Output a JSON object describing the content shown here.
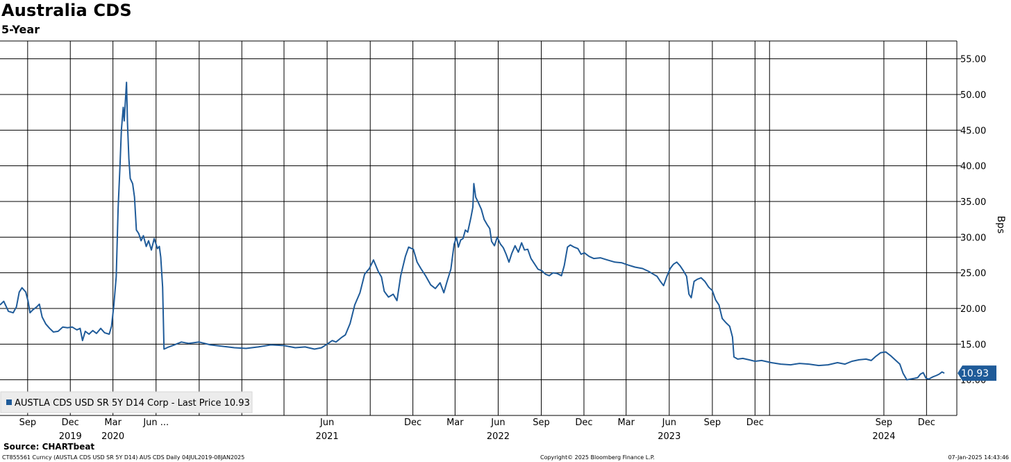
{
  "chart_data": {
    "type": "line",
    "title": "Australia CDS",
    "subtitle": "5-Year",
    "ylabel": "Bps",
    "ylim": [
      5,
      57.5
    ],
    "y_ticks": [
      "55.00",
      "50.00",
      "45.00",
      "40.00",
      "35.00",
      "30.00",
      "25.00",
      "20.00",
      "15.00",
      "10.00"
    ],
    "x_range": [
      "2019-07-04",
      "2025-01-08"
    ],
    "x_tick_labels": [
      {
        "date": "2019-09-01",
        "label": "Sep"
      },
      {
        "date": "2019-12-01",
        "label": "Dec"
      },
      {
        "date": "2020-03-01",
        "label": "Mar"
      },
      {
        "date": "2020-06-01",
        "label": "Jun ..."
      },
      {
        "date": "2021-06-01",
        "label": "Jun"
      },
      {
        "date": "2021-12-01",
        "label": "Dec"
      },
      {
        "date": "2022-03-01",
        "label": "Mar"
      },
      {
        "date": "2022-06-01",
        "label": "Jun"
      },
      {
        "date": "2022-09-01",
        "label": "Sep"
      },
      {
        "date": "2022-12-01",
        "label": "Dec"
      },
      {
        "date": "2023-03-01",
        "label": "Mar"
      },
      {
        "date": "2023-06-01",
        "label": "Jun"
      },
      {
        "date": "2023-09-01",
        "label": "Sep"
      },
      {
        "date": "2023-12-01",
        "label": "Dec"
      },
      {
        "date": "2024-09-01",
        "label": "Sep"
      },
      {
        "date": "2024-12-01",
        "label": "Dec"
      }
    ],
    "year_labels": [
      {
        "date": "2019-12-01",
        "label": "2019"
      },
      {
        "date": "2020-03-01",
        "label": "2020"
      },
      {
        "date": "2021-06-01",
        "label": "2021"
      },
      {
        "date": "2022-06-01",
        "label": "2022"
      },
      {
        "date": "2023-06-01",
        "label": "2023"
      },
      {
        "date": "2024-09-01",
        "label": "2024"
      }
    ],
    "vertical_gridlines": [
      "2019-09-01",
      "2019-12-01",
      "2020-03-01",
      "2020-06-01",
      "2020-09-01",
      "2020-12-01",
      "2021-03-01",
      "2021-06-01",
      "2021-09-01",
      "2021-12-01",
      "2022-03-01",
      "2022-06-01",
      "2022-09-01",
      "2022-12-01",
      "2023-03-01",
      "2023-06-01",
      "2023-09-01",
      "2023-12-01",
      "2024-01-01",
      "2024-09-01",
      "2024-12-01"
    ],
    "grid": true,
    "legend": {
      "placement": "bottom-left",
      "text": "AUSTLA CDS USD SR 5Y D14 Corp - Last Price 10.93"
    },
    "last_price_label": "10.93",
    "colors": {
      "series": "#1f5b99",
      "last_price_box": "#1f5b99",
      "legend_bg": "#ececec",
      "grid": "#000000"
    },
    "series": [
      {
        "name": "AUSTLA CDS USD SR 5Y D14 Corp",
        "points": [
          [
            "2019-07-04",
            20.5
          ],
          [
            "2019-07-12",
            21.0
          ],
          [
            "2019-07-22",
            19.6
          ],
          [
            "2019-08-01",
            19.4
          ],
          [
            "2019-08-08",
            20.2
          ],
          [
            "2019-08-14",
            22.3
          ],
          [
            "2019-08-20",
            22.9
          ],
          [
            "2019-08-28",
            22.3
          ],
          [
            "2019-09-02",
            21.0
          ],
          [
            "2019-09-06",
            19.4
          ],
          [
            "2019-09-12",
            19.8
          ],
          [
            "2019-09-20",
            20.2
          ],
          [
            "2019-09-26",
            20.6
          ],
          [
            "2019-10-02",
            18.8
          ],
          [
            "2019-10-10",
            17.8
          ],
          [
            "2019-10-18",
            17.2
          ],
          [
            "2019-10-26",
            16.7
          ],
          [
            "2019-11-05",
            16.8
          ],
          [
            "2019-11-15",
            17.4
          ],
          [
            "2019-11-25",
            17.3
          ],
          [
            "2019-12-05",
            17.4
          ],
          [
            "2019-12-15",
            17.0
          ],
          [
            "2019-12-22",
            17.2
          ],
          [
            "2019-12-27",
            15.5
          ],
          [
            "2020-01-02",
            16.8
          ],
          [
            "2020-01-10",
            16.4
          ],
          [
            "2020-01-18",
            16.9
          ],
          [
            "2020-01-26",
            16.5
          ],
          [
            "2020-02-04",
            17.2
          ],
          [
            "2020-02-12",
            16.6
          ],
          [
            "2020-02-22",
            16.4
          ],
          [
            "2020-02-27",
            17.5
          ],
          [
            "2020-03-03",
            20.5
          ],
          [
            "2020-03-08",
            24.5
          ],
          [
            "2020-03-12",
            34.0
          ],
          [
            "2020-03-16",
            40.0
          ],
          [
            "2020-03-19",
            45.0
          ],
          [
            "2020-03-23",
            48.2
          ],
          [
            "2020-03-25",
            46.3
          ],
          [
            "2020-03-27",
            48.5
          ],
          [
            "2020-03-30",
            51.7
          ],
          [
            "2020-04-01",
            46.0
          ],
          [
            "2020-04-04",
            41.0
          ],
          [
            "2020-04-07",
            38.2
          ],
          [
            "2020-04-12",
            37.5
          ],
          [
            "2020-04-16",
            35.6
          ],
          [
            "2020-04-20",
            31.0
          ],
          [
            "2020-04-25",
            30.5
          ],
          [
            "2020-04-30",
            29.5
          ],
          [
            "2020-05-05",
            30.2
          ],
          [
            "2020-05-11",
            28.7
          ],
          [
            "2020-05-16",
            29.5
          ],
          [
            "2020-05-22",
            28.2
          ],
          [
            "2020-05-28",
            29.8
          ],
          [
            "2020-06-04",
            28.4
          ],
          [
            "2020-06-08",
            28.7
          ],
          [
            "2020-06-11",
            27.2
          ],
          [
            "2020-06-15",
            23.0
          ],
          [
            "2020-06-18",
            14.3
          ],
          [
            "2020-06-28",
            14.6
          ],
          [
            "2020-07-10",
            14.9
          ],
          [
            "2020-07-25",
            15.3
          ],
          [
            "2020-08-10",
            15.1
          ],
          [
            "2020-09-01",
            15.3
          ],
          [
            "2020-09-25",
            14.9
          ],
          [
            "2020-10-20",
            14.7
          ],
          [
            "2020-11-15",
            14.5
          ],
          [
            "2020-12-10",
            14.4
          ],
          [
            "2021-01-05",
            14.6
          ],
          [
            "2021-02-01",
            14.9
          ],
          [
            "2021-03-01",
            14.8
          ],
          [
            "2021-03-25",
            14.5
          ],
          [
            "2021-04-15",
            14.6
          ],
          [
            "2021-05-05",
            14.3
          ],
          [
            "2021-05-20",
            14.5
          ],
          [
            "2021-06-01",
            15.0
          ],
          [
            "2021-06-12",
            15.5
          ],
          [
            "2021-06-20",
            15.3
          ],
          [
            "2021-07-01",
            15.9
          ],
          [
            "2021-07-10",
            16.3
          ],
          [
            "2021-07-20",
            17.9
          ],
          [
            "2021-07-30",
            20.5
          ],
          [
            "2021-08-10",
            22.2
          ],
          [
            "2021-08-20",
            24.8
          ],
          [
            "2021-08-30",
            25.6
          ],
          [
            "2021-09-08",
            26.8
          ],
          [
            "2021-09-18",
            25.2
          ],
          [
            "2021-09-25",
            24.4
          ],
          [
            "2021-10-01",
            22.4
          ],
          [
            "2021-10-10",
            21.6
          ],
          [
            "2021-10-20",
            22.0
          ],
          [
            "2021-10-28",
            21.1
          ],
          [
            "2021-11-05",
            24.6
          ],
          [
            "2021-11-15",
            27.3
          ],
          [
            "2021-11-22",
            28.6
          ],
          [
            "2021-12-02",
            28.3
          ],
          [
            "2021-12-10",
            26.5
          ],
          [
            "2021-12-18",
            25.6
          ],
          [
            "2021-12-28",
            24.6
          ],
          [
            "2022-01-08",
            23.3
          ],
          [
            "2022-01-18",
            22.8
          ],
          [
            "2022-01-28",
            23.6
          ],
          [
            "2022-02-05",
            22.2
          ],
          [
            "2022-02-12",
            23.8
          ],
          [
            "2022-02-20",
            25.5
          ],
          [
            "2022-02-27",
            29.0
          ],
          [
            "2022-03-04",
            30.0
          ],
          [
            "2022-03-08",
            28.6
          ],
          [
            "2022-03-13",
            29.6
          ],
          [
            "2022-03-18",
            29.8
          ],
          [
            "2022-03-23",
            31.0
          ],
          [
            "2022-03-28",
            30.7
          ],
          [
            "2022-04-04",
            32.8
          ],
          [
            "2022-04-08",
            34.2
          ],
          [
            "2022-04-10",
            37.5
          ],
          [
            "2022-04-14",
            35.6
          ],
          [
            "2022-04-20",
            34.8
          ],
          [
            "2022-04-26",
            33.9
          ],
          [
            "2022-05-02",
            32.5
          ],
          [
            "2022-05-08",
            31.8
          ],
          [
            "2022-05-14",
            31.2
          ],
          [
            "2022-05-18",
            29.4
          ],
          [
            "2022-05-24",
            28.8
          ],
          [
            "2022-05-30",
            30.0
          ],
          [
            "2022-06-05",
            29.1
          ],
          [
            "2022-06-12",
            28.5
          ],
          [
            "2022-06-18",
            27.6
          ],
          [
            "2022-06-24",
            26.5
          ],
          [
            "2022-06-30",
            27.7
          ],
          [
            "2022-07-07",
            28.8
          ],
          [
            "2022-07-14",
            27.9
          ],
          [
            "2022-07-21",
            29.2
          ],
          [
            "2022-07-27",
            28.2
          ],
          [
            "2022-08-03",
            28.3
          ],
          [
            "2022-08-10",
            27.0
          ],
          [
            "2022-08-18",
            26.2
          ],
          [
            "2022-08-25",
            25.5
          ],
          [
            "2022-09-02",
            25.3
          ],
          [
            "2022-09-10",
            24.8
          ],
          [
            "2022-09-18",
            24.6
          ],
          [
            "2022-09-26",
            25.0
          ],
          [
            "2022-10-05",
            24.9
          ],
          [
            "2022-10-14",
            24.6
          ],
          [
            "2022-10-20",
            26.0
          ],
          [
            "2022-10-27",
            28.6
          ],
          [
            "2022-11-02",
            28.9
          ],
          [
            "2022-11-10",
            28.6
          ],
          [
            "2022-11-18",
            28.4
          ],
          [
            "2022-11-25",
            27.6
          ],
          [
            "2022-12-02",
            27.8
          ],
          [
            "2022-12-12",
            27.3
          ],
          [
            "2022-12-22",
            27.0
          ],
          [
            "2023-01-05",
            27.1
          ],
          [
            "2023-01-20",
            26.8
          ],
          [
            "2023-02-05",
            26.5
          ],
          [
            "2023-02-20",
            26.4
          ],
          [
            "2023-03-05",
            26.1
          ],
          [
            "2023-03-20",
            25.8
          ],
          [
            "2023-04-05",
            25.6
          ],
          [
            "2023-04-18",
            25.2
          ],
          [
            "2023-04-28",
            24.8
          ],
          [
            "2023-05-06",
            24.5
          ],
          [
            "2023-05-13",
            23.8
          ],
          [
            "2023-05-20",
            23.2
          ],
          [
            "2023-05-27",
            24.5
          ],
          [
            "2023-06-03",
            25.6
          ],
          [
            "2023-06-10",
            26.2
          ],
          [
            "2023-06-17",
            26.5
          ],
          [
            "2023-06-24",
            26.0
          ],
          [
            "2023-07-01",
            25.3
          ],
          [
            "2023-07-08",
            24.5
          ],
          [
            "2023-07-13",
            22.0
          ],
          [
            "2023-07-18",
            21.5
          ],
          [
            "2023-07-24",
            23.8
          ],
          [
            "2023-07-31",
            24.1
          ],
          [
            "2023-08-08",
            24.3
          ],
          [
            "2023-08-16",
            23.8
          ],
          [
            "2023-08-24",
            23.0
          ],
          [
            "2023-09-01",
            22.5
          ],
          [
            "2023-09-08",
            21.2
          ],
          [
            "2023-09-15",
            20.5
          ],
          [
            "2023-09-22",
            18.6
          ],
          [
            "2023-09-30",
            18.0
          ],
          [
            "2023-10-08",
            17.5
          ],
          [
            "2023-10-14",
            16.0
          ],
          [
            "2023-10-17",
            13.2
          ],
          [
            "2023-10-25",
            12.9
          ],
          [
            "2023-11-05",
            13.0
          ],
          [
            "2023-11-18",
            12.8
          ],
          [
            "2023-12-01",
            12.6
          ],
          [
            "2023-12-15",
            12.7
          ],
          [
            "2024-01-05",
            12.4
          ],
          [
            "2024-01-25",
            12.2
          ],
          [
            "2024-02-15",
            12.1
          ],
          [
            "2024-03-05",
            12.3
          ],
          [
            "2024-03-25",
            12.2
          ],
          [
            "2024-04-15",
            12.0
          ],
          [
            "2024-05-05",
            12.1
          ],
          [
            "2024-05-25",
            12.4
          ],
          [
            "2024-06-10",
            12.2
          ],
          [
            "2024-06-25",
            12.6
          ],
          [
            "2024-07-10",
            12.8
          ],
          [
            "2024-07-25",
            12.9
          ],
          [
            "2024-08-05",
            12.7
          ],
          [
            "2024-08-15",
            13.3
          ],
          [
            "2024-08-25",
            13.8
          ],
          [
            "2024-09-05",
            13.9
          ],
          [
            "2024-09-15",
            13.4
          ],
          [
            "2024-09-25",
            12.8
          ],
          [
            "2024-10-05",
            12.2
          ],
          [
            "2024-10-12",
            10.9
          ],
          [
            "2024-10-20",
            10.0
          ],
          [
            "2024-10-28",
            10.1
          ],
          [
            "2024-11-05",
            10.2
          ],
          [
            "2024-11-12",
            10.3
          ],
          [
            "2024-11-18",
            10.8
          ],
          [
            "2024-11-24",
            11.0
          ],
          [
            "2024-11-30",
            10.2
          ],
          [
            "2024-12-06",
            10.1
          ],
          [
            "2024-12-14",
            10.4
          ],
          [
            "2024-12-22",
            10.6
          ],
          [
            "2024-12-28",
            10.8
          ],
          [
            "2025-01-03",
            11.1
          ],
          [
            "2025-01-08",
            10.93
          ]
        ]
      }
    ]
  },
  "source_text": "Source: CHARTbeat",
  "footer": {
    "left": "CT855561 Curncy (AUSTLA CDS USD SR 5Y D14) AUS CDS  Daily 04JUL2019-08JAN2025",
    "center": "Copyright© 2025 Bloomberg Finance L.P.",
    "right": "07-Jan-2025 14:43:46"
  }
}
